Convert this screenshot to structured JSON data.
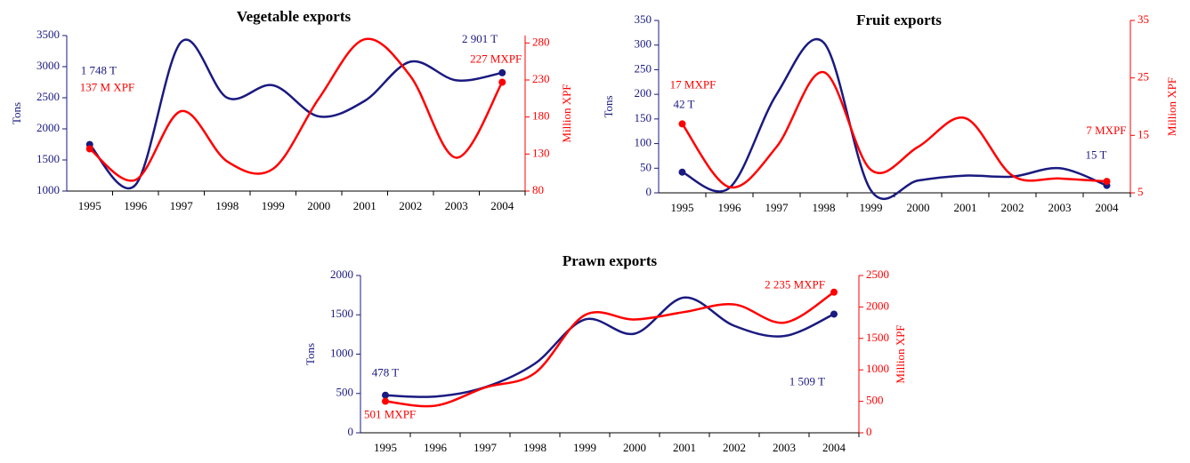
{
  "chart_data": [
    {
      "type": "line",
      "title": "Vegetable exports",
      "y_label": "Tons",
      "y2_label": "Million XPF",
      "categories": [
        "1995",
        "1996",
        "1997",
        "1998",
        "1999",
        "2000",
        "2001",
        "2002",
        "2003",
        "2004"
      ],
      "ylim": [
        1000,
        3500
      ],
      "yticks": [
        1000,
        1500,
        2000,
        2500,
        3000,
        3500
      ],
      "y2lim": [
        80,
        290
      ],
      "y2ticks": [
        80,
        130,
        180,
        230,
        280
      ],
      "series": [
        {
          "color": "#1a1a80",
          "values": [
            1748,
            1100,
            3400,
            2500,
            2700,
            2200,
            2450,
            3080,
            2780,
            2901
          ],
          "value_labels": [
            "1 748 T",
            null,
            null,
            null,
            null,
            null,
            null,
            null,
            null,
            "2 901 T"
          ]
        },
        {
          "color": "#ff0000",
          "axis": "y2",
          "values": [
            137,
            95,
            188,
            120,
            110,
            205,
            285,
            235,
            125,
            227
          ],
          "value_labels": [
            "137 M XPF",
            null,
            null,
            null,
            null,
            null,
            null,
            null,
            null,
            "227 MXPF"
          ]
        }
      ]
    },
    {
      "type": "line",
      "title": "Fruit exports",
      "y_label": "Tons",
      "y2_label": "Million XPF",
      "categories": [
        "1995",
        "1996",
        "1997",
        "1998",
        "1999",
        "2000",
        "2001",
        "2002",
        "2003",
        "2004"
      ],
      "ylim": [
        0,
        350
      ],
      "yticks": [
        0,
        50,
        100,
        150,
        200,
        250,
        300,
        350
      ],
      "y2lim": [
        5,
        35
      ],
      "y2ticks": [
        5,
        15,
        25,
        35
      ],
      "series": [
        {
          "color": "#1a1a80",
          "values": [
            42,
            10,
            200,
            305,
            5,
            25,
            35,
            33,
            50,
            15
          ],
          "value_labels": [
            "42 T",
            null,
            null,
            null,
            null,
            null,
            null,
            null,
            null,
            "15 T"
          ]
        },
        {
          "color": "#ff0000",
          "axis": "y2",
          "values": [
            17,
            6,
            13,
            26,
            9,
            13,
            18,
            8,
            7.5,
            7
          ],
          "value_labels": [
            "17 MXPF",
            null,
            null,
            null,
            null,
            null,
            null,
            null,
            null,
            "7 MXPF"
          ]
        }
      ]
    },
    {
      "type": "line",
      "title": "Prawn exports",
      "y_label": "Tons",
      "y2_label": "Million XPF",
      "categories": [
        "1995",
        "1996",
        "1997",
        "1998",
        "1999",
        "2000",
        "2001",
        "2002",
        "2003",
        "2004"
      ],
      "ylim": [
        0,
        2000
      ],
      "yticks": [
        0,
        500,
        1000,
        1500,
        2000
      ],
      "y2lim": [
        0,
        2500
      ],
      "y2ticks": [
        0,
        500,
        1000,
        1500,
        2000,
        2500
      ],
      "series": [
        {
          "color": "#1a1a80",
          "values": [
            478,
            460,
            580,
            880,
            1440,
            1260,
            1720,
            1360,
            1230,
            1509
          ],
          "value_labels": [
            "478 T",
            null,
            null,
            null,
            null,
            null,
            null,
            null,
            null,
            "1 509 T"
          ]
        },
        {
          "color": "#ff0000",
          "axis": "y2",
          "values": [
            501,
            430,
            720,
            950,
            1870,
            1800,
            1920,
            2040,
            1750,
            2235
          ],
          "value_labels": [
            "501 MXPF",
            null,
            null,
            null,
            null,
            null,
            null,
            null,
            null,
            "2 235 MXPF"
          ]
        }
      ]
    }
  ]
}
